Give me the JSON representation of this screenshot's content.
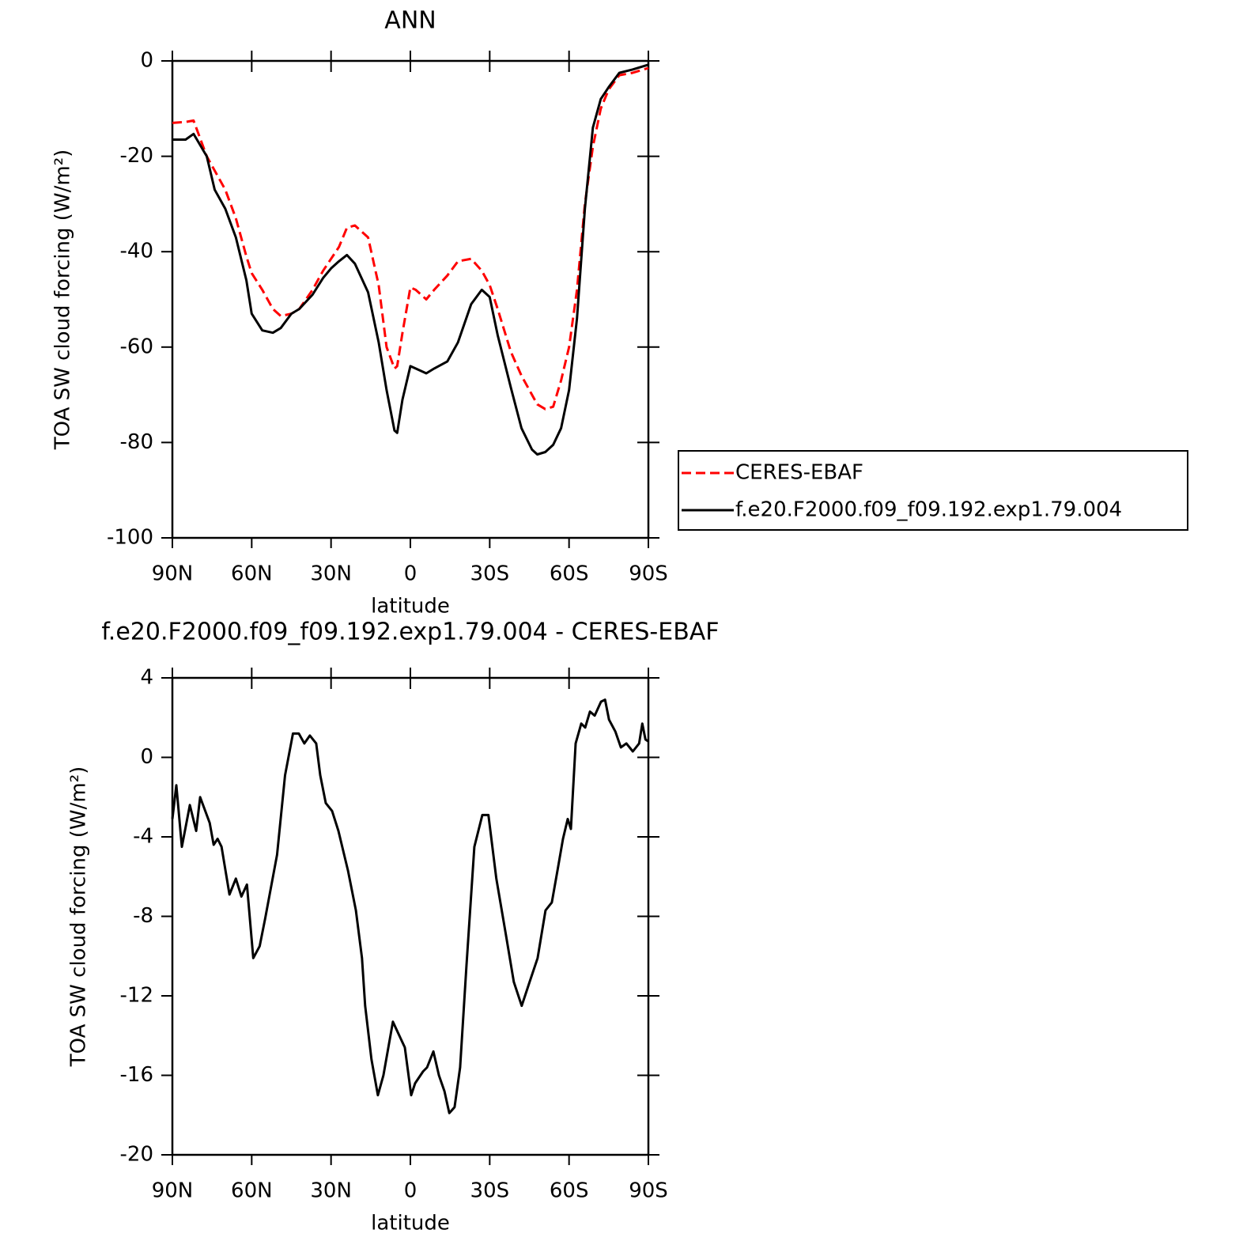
{
  "chart_data": [
    {
      "type": "line",
      "title": "ANN",
      "xlabel": "latitude",
      "ylabel": "TOA SW cloud forcing (W/m²)",
      "x": [
        90,
        85,
        82,
        77,
        74,
        70,
        66,
        62,
        60,
        56,
        52,
        49,
        45,
        42,
        37,
        33,
        30,
        27,
        24,
        21,
        16,
        12,
        9,
        6,
        5,
        3,
        0,
        -2,
        -6,
        -9,
        -14,
        -18,
        -23,
        -27,
        -30,
        -33,
        -38,
        -42,
        -46,
        -48,
        -51,
        -54,
        -57,
        -60,
        -63,
        -66,
        -69,
        -72,
        -75,
        -79,
        -84,
        -90
      ],
      "xlim": [
        90,
        -90
      ],
      "xticks": [
        {
          "value": 90,
          "label": "90N"
        },
        {
          "value": 60,
          "label": "60N"
        },
        {
          "value": 30,
          "label": "30N"
        },
        0,
        {
          "value": -30,
          "label": "30S"
        },
        {
          "value": -60,
          "label": "60S"
        },
        {
          "value": -90,
          "label": "90S"
        }
      ],
      "ylim": [
        -100,
        0
      ],
      "yticks": [
        -100,
        -80,
        -60,
        -40,
        -20,
        0
      ],
      "legend": "right",
      "series": [
        {
          "name": "CERES-EBAF",
          "color": "#ff0000",
          "dashed": true,
          "values": [
            -13,
            -12.8,
            -12.5,
            -20,
            -23,
            -27,
            -33,
            -41,
            -44.5,
            -48,
            -52,
            -53.5,
            -53,
            -52,
            -48,
            -44,
            -41.5,
            -39,
            -35,
            -34.5,
            -37,
            -47,
            -60,
            -64.5,
            -64,
            -57,
            -47.5,
            -48,
            -50,
            -48,
            -45,
            -42,
            -41.5,
            -44,
            -47,
            -52,
            -61,
            -66,
            -70,
            -72,
            -73,
            -72.5,
            -67,
            -60,
            -48,
            -30,
            -18,
            -10,
            -6,
            -3,
            -2.5,
            -1.5
          ]
        },
        {
          "name": "f.e20.F2000.f09_f09.192.exp1.79.004",
          "color": "#000000",
          "dashed": false,
          "values": [
            -16.5,
            -16.5,
            -15.3,
            -20,
            -27,
            -31,
            -37,
            -46,
            -53,
            -56.5,
            -57,
            -56,
            -53,
            -52,
            -49,
            -45.5,
            -43.5,
            -42,
            -40.7,
            -42.5,
            -48.5,
            -59,
            -69,
            -77.5,
            -78,
            -71,
            -64,
            -64.5,
            -65.5,
            -64.5,
            -63,
            -59,
            -51,
            -48,
            -49.5,
            -57.5,
            -68.5,
            -77,
            -81.5,
            -82.5,
            -82,
            -80.5,
            -77,
            -69,
            -54,
            -31,
            -14,
            -8,
            -5.5,
            -2.5,
            -1.8,
            -0.8
          ]
        }
      ]
    },
    {
      "type": "line",
      "title": "f.e20.F2000.f09_f09.192.exp1.79.004 - CERES-EBAF",
      "xlabel": "latitude",
      "ylabel": "TOA SW cloud forcing (W/m²)",
      "x": [
        90,
        88.5,
        86.4,
        83.4,
        81,
        79.5,
        75.9,
        74.4,
        72.9,
        71.4,
        68.4,
        66,
        63.9,
        61.8,
        59.4,
        57,
        54.9,
        50.4,
        47.4,
        44.4,
        42.2,
        40.1,
        38,
        35.6,
        34.1,
        32,
        29.6,
        27.2,
        23.6,
        20.6,
        18.3,
        17.1,
        14.7,
        12.3,
        10.2,
        6.6,
        4.2,
        2.1,
        -0.3,
        -1.8,
        -4.8,
        -6.3,
        -8.7,
        -10.8,
        -12.9,
        -14.7,
        -16.7,
        -18.8,
        -21.2,
        -24.2,
        -27.2,
        -29.5,
        -32.5,
        -36.1,
        -39.1,
        -42.1,
        -45.1,
        -48.1,
        -51.1,
        -53.5,
        -55.6,
        -57.7,
        -59.5,
        -60.7,
        -62.5,
        -64.6,
        -66.1,
        -67.9,
        -69.7,
        -72.1,
        -73.6,
        -75.1,
        -77.5,
        -79.6,
        -81.7,
        -84.1,
        -86.5,
        -87.7,
        -88.9,
        -90
      ],
      "xlim": [
        90,
        -90
      ],
      "xticks": [
        {
          "value": 90,
          "label": "90N"
        },
        {
          "value": 60,
          "label": "60N"
        },
        {
          "value": 30,
          "label": "30N"
        },
        0,
        {
          "value": -30,
          "label": "30S"
        },
        {
          "value": -60,
          "label": "60S"
        },
        {
          "value": -90,
          "label": "90S"
        }
      ],
      "ylim": [
        -20,
        4
      ],
      "yticks": [
        -20,
        -16,
        -12,
        -8,
        -4,
        0,
        4
      ],
      "series": [
        {
          "color": "#000000",
          "dashed": false,
          "values": [
            -3.1,
            -1.4,
            -4.5,
            -2.4,
            -3.7,
            -2,
            -3.3,
            -4.4,
            -4.1,
            -4.5,
            -6.9,
            -6.1,
            -7,
            -6.4,
            -10.1,
            -9.5,
            -8.1,
            -4.9,
            -0.9,
            1.2,
            1.2,
            0.7,
            1.1,
            0.7,
            -0.9,
            -2.3,
            -2.7,
            -3.7,
            -5.7,
            -7.7,
            -10.1,
            -12.5,
            -15.2,
            -17,
            -16,
            -13.3,
            -14,
            -14.6,
            -17,
            -16.4,
            -15.8,
            -15.6,
            -14.8,
            -16,
            -16.8,
            -17.9,
            -17.6,
            -15.6,
            -10.5,
            -4.5,
            -2.9,
            -2.9,
            -6.1,
            -8.9,
            -11.3,
            -12.5,
            -11.3,
            -10.1,
            -7.7,
            -7.3,
            -5.7,
            -4.1,
            -3.1,
            -3.6,
            0.7,
            1.7,
            1.5,
            2.3,
            2.1,
            2.8,
            2.9,
            1.9,
            1.3,
            0.5,
            0.7,
            0.3,
            0.7,
            1.7,
            0.9,
            0.8
          ]
        }
      ]
    }
  ]
}
